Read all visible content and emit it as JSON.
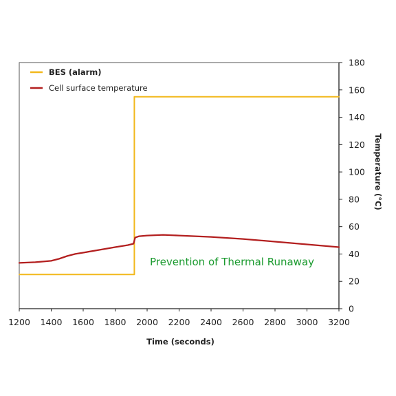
{
  "chart_data": {
    "type": "line",
    "title": "",
    "xlabel": "Time (seconds)",
    "ylabel": "Temperature (°C)",
    "xlim": [
      1200,
      3200
    ],
    "ylim": [
      0,
      180
    ],
    "x_ticks": [
      1200,
      1400,
      1600,
      1800,
      2000,
      2200,
      2400,
      2600,
      2800,
      3000,
      3200
    ],
    "y_ticks": [
      0,
      20,
      40,
      60,
      80,
      100,
      120,
      140,
      160,
      180
    ],
    "y_axis_side": "right",
    "grid": false,
    "legend_position": "top-left",
    "annotation": {
      "text": "Prevention of Thermal Runaway",
      "color": "#1a9a2e"
    },
    "series": [
      {
        "name": "BES (alarm)",
        "color": "#f2b81c",
        "style": "step",
        "points": [
          [
            1200,
            25
          ],
          [
            1920,
            25
          ],
          [
            1920,
            155
          ],
          [
            3200,
            155
          ]
        ]
      },
      {
        "name": "Cell surface temperature",
        "color": "#b31f1f",
        "style": "line",
        "points": [
          [
            1200,
            33.5
          ],
          [
            1300,
            34
          ],
          [
            1400,
            35
          ],
          [
            1450,
            36.5
          ],
          [
            1500,
            38.5
          ],
          [
            1550,
            40
          ],
          [
            1600,
            41
          ],
          [
            1700,
            43
          ],
          [
            1800,
            45
          ],
          [
            1880,
            46.5
          ],
          [
            1915,
            47.5
          ],
          [
            1925,
            52
          ],
          [
            1950,
            53
          ],
          [
            2000,
            53.5
          ],
          [
            2100,
            54
          ],
          [
            2200,
            53.5
          ],
          [
            2400,
            52.5
          ],
          [
            2600,
            51
          ],
          [
            2800,
            49
          ],
          [
            3000,
            47
          ],
          [
            3200,
            45
          ]
        ]
      }
    ]
  }
}
